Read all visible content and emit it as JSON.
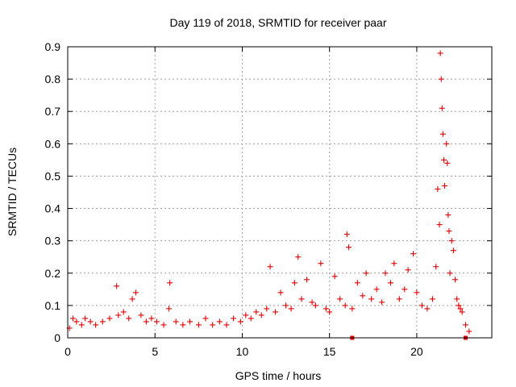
{
  "chart_data": {
    "type": "scatter",
    "title": "Day 119 of 2018, SRMTID for receiver paar",
    "xlabel": "GPS time / hours",
    "ylabel": "SRMTID / TECUs",
    "xlim": [
      0,
      24.3
    ],
    "ylim": [
      0,
      0.9
    ],
    "xticks": [
      0,
      5,
      10,
      15,
      20
    ],
    "xtick_labels": [
      "0",
      "5",
      "10",
      "15",
      "20"
    ],
    "yticks": [
      0,
      0.1,
      0.2,
      0.3,
      0.4,
      0.5,
      0.6,
      0.7,
      0.8,
      0.9
    ],
    "ytick_labels": [
      "0",
      "0.1",
      "0.2",
      "0.3",
      "0.4",
      "0.5",
      "0.6",
      "0.7",
      "0.8",
      "0.9"
    ],
    "grid": true,
    "marker": "+",
    "color": "#e00000",
    "series": [
      {
        "name": "SRMTID",
        "x": [
          0.1,
          0.3,
          0.5,
          0.8,
          1.0,
          1.3,
          1.6,
          2.0,
          2.4,
          2.8,
          2.9,
          3.2,
          3.5,
          3.7,
          3.9,
          4.2,
          4.5,
          4.8,
          5.1,
          5.5,
          5.8,
          5.85,
          6.2,
          6.6,
          7.0,
          7.5,
          7.9,
          8.3,
          8.7,
          9.1,
          9.5,
          9.9,
          10.2,
          10.5,
          10.8,
          11.1,
          11.4,
          11.6,
          11.9,
          12.2,
          12.5,
          12.8,
          13.0,
          13.2,
          13.4,
          13.7,
          14.0,
          14.2,
          14.5,
          14.8,
          15.0,
          15.3,
          15.6,
          15.9,
          16.0,
          16.1,
          16.3,
          16.6,
          16.9,
          17.1,
          17.4,
          17.7,
          18.0,
          18.2,
          18.5,
          18.7,
          19.0,
          19.3,
          19.5,
          19.8,
          20.0,
          20.3,
          20.6,
          20.9,
          21.1,
          21.2,
          21.3,
          21.35,
          21.4,
          21.45,
          21.5,
          21.55,
          21.6,
          21.7,
          21.75,
          21.8,
          21.85,
          21.9,
          22.0,
          22.1,
          22.2,
          22.3,
          22.4,
          22.5,
          22.6,
          22.8,
          23.0
        ],
        "y": [
          0.03,
          0.06,
          0.05,
          0.04,
          0.06,
          0.05,
          0.04,
          0.05,
          0.06,
          0.16,
          0.07,
          0.08,
          0.06,
          0.12,
          0.14,
          0.07,
          0.05,
          0.06,
          0.05,
          0.04,
          0.09,
          0.17,
          0.05,
          0.04,
          0.05,
          0.04,
          0.06,
          0.04,
          0.05,
          0.04,
          0.06,
          0.05,
          0.07,
          0.06,
          0.08,
          0.07,
          0.09,
          0.22,
          0.08,
          0.14,
          0.1,
          0.09,
          0.17,
          0.25,
          0.12,
          0.18,
          0.11,
          0.1,
          0.23,
          0.09,
          0.08,
          0.19,
          0.12,
          0.1,
          0.32,
          0.28,
          0.09,
          0.17,
          0.13,
          0.2,
          0.12,
          0.15,
          0.11,
          0.2,
          0.17,
          0.23,
          0.12,
          0.15,
          0.21,
          0.26,
          0.14,
          0.1,
          0.09,
          0.12,
          0.22,
          0.46,
          0.35,
          0.88,
          0.8,
          0.71,
          0.63,
          0.55,
          0.47,
          0.6,
          0.54,
          0.38,
          0.33,
          0.2,
          0.3,
          0.27,
          0.18,
          0.12,
          0.1,
          0.09,
          0.08,
          0.04,
          0.02
        ]
      }
    ],
    "extra_markers": [
      {
        "x": 16.3,
        "y": 0.0
      },
      {
        "x": 22.8,
        "y": 0.0
      }
    ]
  }
}
